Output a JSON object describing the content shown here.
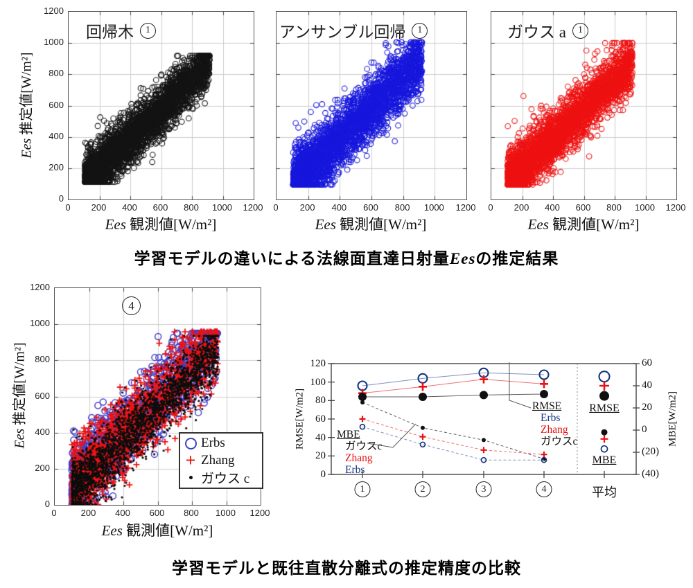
{
  "captions": {
    "top_prefix": "学習モデルの違いによる法線面直達日射量",
    "top_var": "Ees",
    "top_suffix": "の推定結果",
    "bottom": "学習モデルと既往直散分離式の推定精度の比較"
  },
  "axis": {
    "x_var": "Ees",
    "x_rest": " 観測値[W/m²]",
    "y_var": "Ees",
    "y_rest": " 推定値[W/m²]",
    "x_ticks": [
      "0",
      "200",
      "400",
      "600",
      "800",
      "1000",
      "1200"
    ],
    "y_ticks": [
      "1200",
      "1000",
      "800",
      "600",
      "400",
      "200",
      "0"
    ]
  },
  "colors": {
    "grid": "#cccccc",
    "frame": "#555555",
    "black": "#141414",
    "blue": "#1717dd",
    "red": "#ee1212",
    "navy": "#16367f"
  },
  "chart_data": [
    {
      "id": "scatter-regression-tree",
      "type": "scatter",
      "title": "回帰木",
      "badge": "1",
      "xlabel": "Ees 観測値[W/m²]",
      "ylabel": "Ees 推定値[W/m²]",
      "xlim": [
        0,
        1200
      ],
      "ylim": [
        0,
        1200
      ],
      "grid": true,
      "series": [
        {
          "marker": "open-circle",
          "color": "#141414",
          "size": 3.8,
          "lw": 1.1,
          "cloud": {
            "n": 3200,
            "seed": 101,
            "x_min": 105,
            "x_max": 915,
            "x_pow": 1.3,
            "slope": 0.95,
            "intercept": 5,
            "noise_sd": 80,
            "y_min": 112,
            "y_max": 918,
            "out_p": 0.02,
            "out_lo": 80,
            "out_hi": 220
          }
        }
      ]
    },
    {
      "id": "scatter-ensemble-regression",
      "type": "scatter",
      "title": "アンサンブル回帰",
      "badge": "1",
      "xlabel": "Ees 観測値[W/m²]",
      "ylabel": "Ees 推定値[W/m²]",
      "xlim": [
        0,
        1200
      ],
      "ylim": [
        0,
        1200
      ],
      "grid": true,
      "series": [
        {
          "marker": "open-circle",
          "color": "#1717dd",
          "size": 3.8,
          "lw": 1.1,
          "cloud": {
            "n": 3200,
            "seed": 202,
            "x_min": 105,
            "x_max": 920,
            "x_pow": 1.25,
            "slope": 0.97,
            "intercept": 0,
            "noise_sd": 95,
            "y_min": 95,
            "y_max": 1005,
            "out_p": 0.015,
            "out_lo": 100,
            "out_hi": 250
          }
        }
      ]
    },
    {
      "id": "scatter-gauss-a",
      "type": "scatter",
      "title": "ガウス a",
      "badge": "1",
      "xlabel": "Ees 観測値[W/m²]",
      "ylabel": "Ees 推定値[W/m²]",
      "xlim": [
        0,
        1200
      ],
      "ylim": [
        0,
        1200
      ],
      "grid": true,
      "series": [
        {
          "marker": "open-circle",
          "color": "#ee1212",
          "size": 3.8,
          "lw": 1.1,
          "cloud": {
            "n": 3200,
            "seed": 303,
            "x_min": 105,
            "x_max": 915,
            "x_pow": 1.3,
            "slope": 0.93,
            "intercept": 15,
            "noise_sd": 82,
            "y_min": 95,
            "y_max": 1000,
            "out_p": 0.03,
            "out_lo": 100,
            "out_hi": 280
          }
        }
      ]
    },
    {
      "id": "scatter-combined",
      "type": "scatter",
      "title": "",
      "badge": "4",
      "xlabel": "Ees 観測値[W/m²]",
      "ylabel": "Ees 推定値[W/m²]",
      "xlim": [
        0,
        1200
      ],
      "ylim": [
        0,
        1200
      ],
      "grid": true,
      "series": [
        {
          "name": "Erbs",
          "marker": "open-circle",
          "color": "#3e3ecb",
          "size": 4.5,
          "lw": 1.5,
          "cloud": {
            "n": 1100,
            "seed": 41,
            "x_min": 100,
            "x_max": 950,
            "x_pow": 1.35,
            "slope": 0.97,
            "intercept": 15,
            "noise_sd": 110,
            "y_min": 5,
            "y_max": 950
          }
        },
        {
          "name": "Zhang",
          "marker": "plus",
          "color": "#ee1212",
          "size": 4.5,
          "lw": 1.8,
          "cloud": {
            "n": 1300,
            "seed": 42,
            "x_min": 100,
            "x_max": 950,
            "x_pow": 1.35,
            "slope": 0.95,
            "intercept": 0,
            "noise_sd": 110,
            "y_min": 2,
            "y_max": 958
          }
        },
        {
          "name": "ガウス c",
          "marker": "dot",
          "color": "#0d0d0d",
          "size": 1.6,
          "lw": 1,
          "cloud": {
            "n": 2600,
            "seed": 43,
            "x_min": 100,
            "x_max": 952,
            "x_pow": 1.3,
            "slope": 0.92,
            "intercept": -15,
            "noise_sd": 88,
            "y_min": 3,
            "y_max": 935
          }
        }
      ]
    },
    {
      "id": "error-comparison",
      "type": "line",
      "categories": [
        "1",
        "2",
        "3",
        "4"
      ],
      "avg_label": "平均",
      "ylabel_left": "RMSE[W/m2]",
      "ylabel_right": "MBE[W/m2]",
      "ylim_left": [
        0,
        120
      ],
      "ylim_right": [
        -40,
        60
      ],
      "left_ticks": [
        "120",
        "100",
        "80",
        "60",
        "40",
        "20",
        "0"
      ],
      "right_ticks": [
        "60",
        "40",
        "20",
        "0",
        "(20)",
        "(40)"
      ],
      "rmse_series": [
        {
          "name": "Erbs",
          "color": "#16367f",
          "marker": "open-circle",
          "values": [
            96,
            104,
            110,
            108
          ],
          "avg": 106
        },
        {
          "name": "Zhang",
          "color": "#e81212",
          "marker": "plus",
          "values": [
            88,
            95,
            103,
            98
          ],
          "avg": 96
        },
        {
          "name": "ガウスc",
          "color": "#111111",
          "marker": "dot",
          "values": [
            84,
            84,
            86,
            87
          ],
          "avg": 85
        }
      ],
      "mbe_series": [
        {
          "name": "ガウスc",
          "color": "#111111",
          "marker": "dot",
          "values": [
            25,
            2,
            -9,
            -26
          ],
          "avg": -2
        },
        {
          "name": "Zhang",
          "color": "#e81212",
          "marker": "plus",
          "values": [
            10,
            -6,
            -18,
            -22
          ],
          "avg": -8
        },
        {
          "name": "Erbs",
          "color": "#16367f",
          "marker": "open-circle",
          "values": [
            3,
            -13,
            -27,
            -27
          ],
          "avg": -17
        }
      ],
      "labels": {
        "rmse": "RMSE",
        "mbe": "MBE"
      }
    }
  ]
}
